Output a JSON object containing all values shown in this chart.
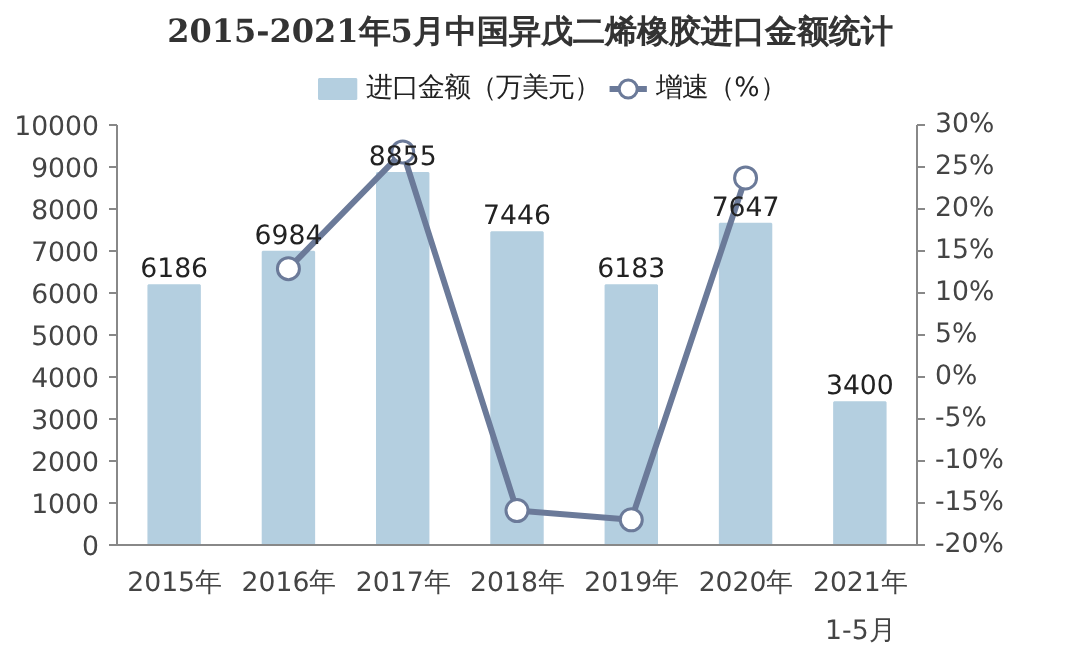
{
  "chart_data": {
    "type": "bar",
    "title": "2015-2021年5月中国异戊二烯橡胶进口金额统计",
    "categories": [
      "2015年",
      "2016年",
      "2017年",
      "2018年",
      "2019年",
      "2020年",
      "2021年\n1-5月"
    ],
    "series": [
      {
        "name": "进口金额（万美元）",
        "color": "#b4cfe0",
        "values": [
          6186,
          6984,
          8855,
          7446,
          6183,
          7647,
          3400
        ],
        "value_labels": [
          "6186",
          "6984",
          "8855",
          "7446",
          "6183",
          "7647",
          "3400"
        ]
      },
      {
        "name": "增速（%）",
        "type": "line",
        "axis": "y2",
        "color": "#6b7a99",
        "marker": "circle",
        "line_style": "solid",
        "values": [
          null,
          12.9,
          26.8,
          -15.9,
          -17.0,
          23.7,
          null
        ]
      }
    ],
    "ylim": [
      0,
      10000
    ],
    "yticks": [
      0,
      1000,
      2000,
      3000,
      4000,
      5000,
      6000,
      7000,
      8000,
      9000,
      10000
    ],
    "y2lim": [
      -20,
      30
    ],
    "y2ticks": [
      {
        "value": -20,
        "label": "-20%"
      },
      {
        "value": -15,
        "label": "-15%"
      },
      {
        "value": -10,
        "label": "-10%"
      },
      {
        "value": -5,
        "label": "-5%"
      },
      {
        "value": 0,
        "label": "0%"
      },
      {
        "value": 5,
        "label": "5%"
      },
      {
        "value": 10,
        "label": "10%"
      },
      {
        "value": 15,
        "label": "15%"
      },
      {
        "value": 20,
        "label": "20%"
      },
      {
        "value": 25,
        "label": "25%"
      },
      {
        "value": 30,
        "label": "30%"
      }
    ],
    "grid": false,
    "legend": "top"
  }
}
